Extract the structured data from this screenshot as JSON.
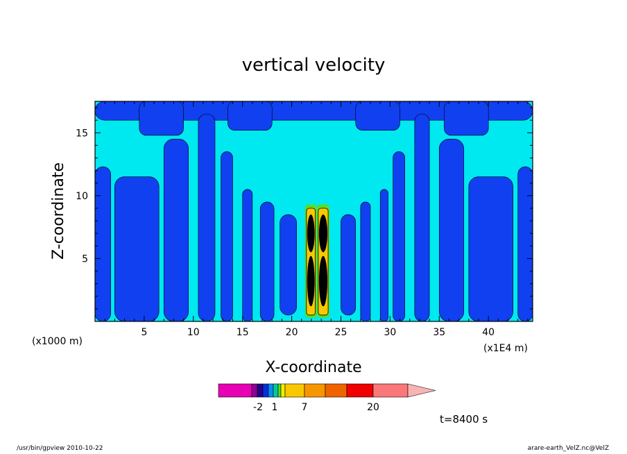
{
  "chart_data": {
    "type": "heatmap",
    "title": "vertical velocity",
    "xlabel": "X-coordinate",
    "ylabel": "Z-coordinate",
    "x_scale_label": "(x1000 m)",
    "x_unit_label": "(x1E4 m)",
    "xlim": [
      0,
      44.5
    ],
    "ylim": [
      0,
      17.5
    ],
    "x_ticks": [
      5,
      10,
      15,
      20,
      25,
      30,
      35,
      40
    ],
    "y_ticks": [
      5,
      10,
      15
    ],
    "colorbar": {
      "colors": [
        "#e800b4",
        "#8c0096",
        "#28008c",
        "#0032dc",
        "#0a8cf0",
        "#00c8a0",
        "#5adc28",
        "#f0f000",
        "#fac800",
        "#f89600",
        "#f06400",
        "#f00000",
        "#fa7878",
        "#f8b4b4"
      ],
      "tick_labels": [
        "-2",
        "1",
        "7",
        "20"
      ]
    },
    "field_colors": {
      "background": "#00e8f0",
      "negative": "#1040f0",
      "updraft": "#fac800",
      "core": "#000000",
      "edge": "#5adc28"
    },
    "annotation": "t=8400 s"
  },
  "footer": {
    "left": "/usr/bin/gpview  2010-10-22",
    "right": "arare-earth_VelZ.nc@VelZ"
  }
}
